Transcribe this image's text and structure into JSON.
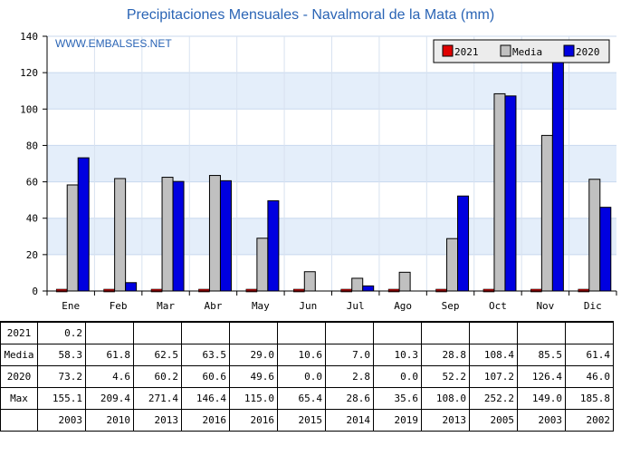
{
  "title": "Precipitaciones Mensuales - Navalmoral de la Mata (mm)",
  "watermark": "WWW.EMBALSES.NET",
  "chart_data": {
    "type": "bar",
    "title": "Precipitaciones Mensuales - Navalmoral de la Mata (mm)",
    "categories": [
      "Ene",
      "Feb",
      "Mar",
      "Abr",
      "May",
      "Jun",
      "Jul",
      "Ago",
      "Sep",
      "Oct",
      "Nov",
      "Dic"
    ],
    "ylim": [
      0,
      140
    ],
    "yticks": [
      0,
      20,
      40,
      60,
      80,
      100,
      120,
      140
    ],
    "legend_position": "top-right",
    "series": [
      {
        "name": "2021",
        "color": "#e00000",
        "values": [
          0.2,
          0,
          0,
          0,
          0,
          0,
          0,
          0,
          0,
          0,
          0,
          0
        ]
      },
      {
        "name": "Media",
        "color": "#c0c0c0",
        "values": [
          58.3,
          61.8,
          62.5,
          63.5,
          29.0,
          10.6,
          7.0,
          10.3,
          28.8,
          108.4,
          85.5,
          61.4
        ]
      },
      {
        "name": "2020",
        "color": "#0000e0",
        "values": [
          73.2,
          4.6,
          60.2,
          60.6,
          49.6,
          0.0,
          2.8,
          0.0,
          52.2,
          107.2,
          126.4,
          46.0
        ]
      }
    ]
  },
  "table": {
    "rows": [
      {
        "label": "2021",
        "cells": [
          "0.2",
          "",
          "",
          "",
          "",
          "",
          "",
          "",
          "",
          "",
          "",
          ""
        ]
      },
      {
        "label": "Media",
        "cells": [
          "58.3",
          "61.8",
          "62.5",
          "63.5",
          "29.0",
          "10.6",
          "7.0",
          "10.3",
          "28.8",
          "108.4",
          "85.5",
          "61.4"
        ]
      },
      {
        "label": "2020",
        "cells": [
          "73.2",
          "4.6",
          "60.2",
          "60.6",
          "49.6",
          "0.0",
          "2.8",
          "0.0",
          "52.2",
          "107.2",
          "126.4",
          "46.0"
        ]
      },
      {
        "label": "Max",
        "cells": [
          "155.1",
          "209.4",
          "271.4",
          "146.4",
          "115.0",
          "65.4",
          "28.6",
          "35.6",
          "108.0",
          "252.2",
          "149.0",
          "185.8"
        ]
      },
      {
        "label": "",
        "cells": [
          "2003",
          "2010",
          "2013",
          "2016",
          "2016",
          "2015",
          "2014",
          "2019",
          "2013",
          "2005",
          "2003",
          "2002"
        ]
      }
    ]
  }
}
